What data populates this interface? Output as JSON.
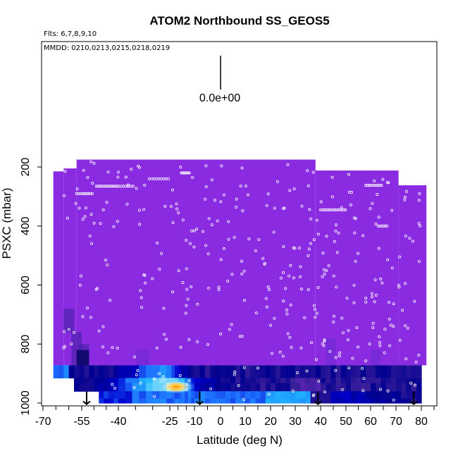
{
  "chart_data": {
    "type": "heatmap",
    "title": "ATOM2 Northbound SS_GEOS5",
    "flights_label": "Flts: 6,7,8,9,10",
    "dates_label": "MMDD: 0210,0213,0215,0218,0219",
    "xlabel": "Latitude (deg N)",
    "ylabel": "PSXC (mbar)",
    "scale_label": "0.0e+00",
    "xlim": [
      -70,
      85
    ],
    "ylim": [
      1000,
      0
    ],
    "y_axis_reversed": true,
    "x_ticks": [
      "-70",
      "-55",
      "-40",
      "-25",
      "-10",
      "0",
      "10",
      "20",
      "30",
      "40",
      "50",
      "60",
      "70",
      "80"
    ],
    "y_ticks": [
      "200",
      "400",
      "600",
      "800",
      "1000"
    ],
    "background_color": "#8a2be2",
    "colormap": [
      "#8a2be2",
      "#3a1f9a",
      "#000090",
      "#0000cc",
      "#1e6fff",
      "#1fb4ff",
      "#8fe0ff",
      "#ffffa0",
      "#ffb000"
    ],
    "hotspot": {
      "lat": -21,
      "psxc": 945
    },
    "surface_arrows_lat": [
      -53,
      -8,
      39,
      77
    ],
    "marker_color": "#ffffff"
  }
}
